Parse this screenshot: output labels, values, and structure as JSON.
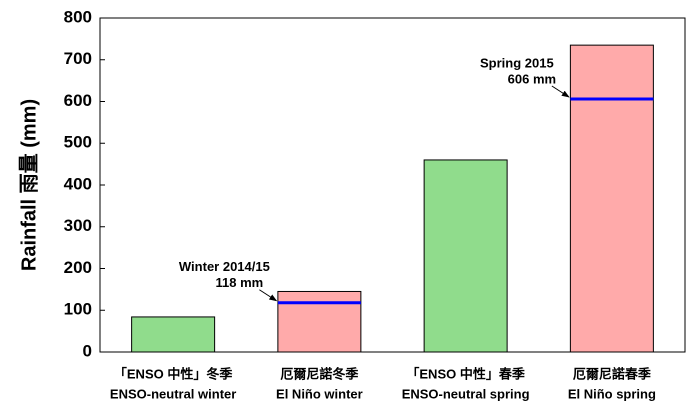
{
  "chart_data": {
    "type": "bar",
    "ylabel": "Rainfall 雨量 (mm)",
    "categories": [
      [
        "「ENSO 中性」冬季",
        "ENSO-neutral winter"
      ],
      [
        "厄爾尼諾冬季",
        "El Niño winter"
      ],
      [
        "「ENSO 中性」春季",
        "ENSO-neutral spring"
      ],
      [
        "厄爾尼諾春季",
        "El Niño spring"
      ]
    ],
    "values": [
      84,
      145,
      460,
      735
    ],
    "colors": [
      "#90dc8c",
      "#ffaaaa",
      "#90dc8c",
      "#ffaaaa"
    ],
    "ylim": [
      0,
      800
    ],
    "yticks": [
      0,
      100,
      200,
      300,
      400,
      500,
      600,
      700,
      800
    ],
    "reference_lines": [
      {
        "category": 1,
        "value": 118,
        "label": [
          "Winter 2014/15",
          "118 mm"
        ],
        "color": "#0000ff"
      },
      {
        "category": 3,
        "value": 606,
        "label": [
          "Spring 2015",
          "606 mm"
        ],
        "color": "#0000ff"
      }
    ]
  }
}
